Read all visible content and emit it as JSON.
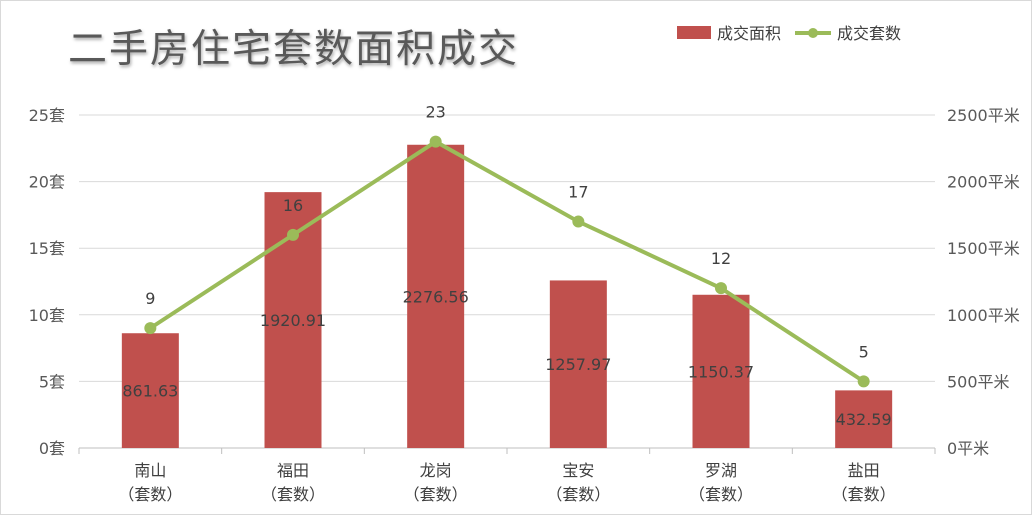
{
  "chart_data": {
    "type": "bar",
    "title": "二手房住宅套数面积成交",
    "categories": [
      "南山\n（套数）",
      "福田\n（套数）",
      "龙岗\n（套数）",
      "宝安\n（套数）",
      "罗湖\n（套数）",
      "盐田\n（套数）"
    ],
    "series": [
      {
        "name": "成交面积",
        "type": "bar",
        "axis": "right",
        "color": "#c0504d",
        "values": [
          861.63,
          1920.91,
          2276.56,
          1257.97,
          1150.37,
          432.59
        ]
      },
      {
        "name": "成交套数",
        "type": "line",
        "axis": "left",
        "color": "#9bbb59",
        "values": [
          9,
          16,
          23,
          17,
          12,
          5
        ]
      }
    ],
    "y_left": {
      "min": 0,
      "max": 25,
      "ticks": [
        "0套",
        "5套",
        "10套",
        "15套",
        "20套",
        "25套"
      ]
    },
    "y_right": {
      "min": 0,
      "max": 2500,
      "ticks": [
        "0平米",
        "500平米",
        "1000平米",
        "1500平米",
        "2000平米",
        "2500平米"
      ]
    },
    "grid": true,
    "legend_position": "top-right"
  }
}
